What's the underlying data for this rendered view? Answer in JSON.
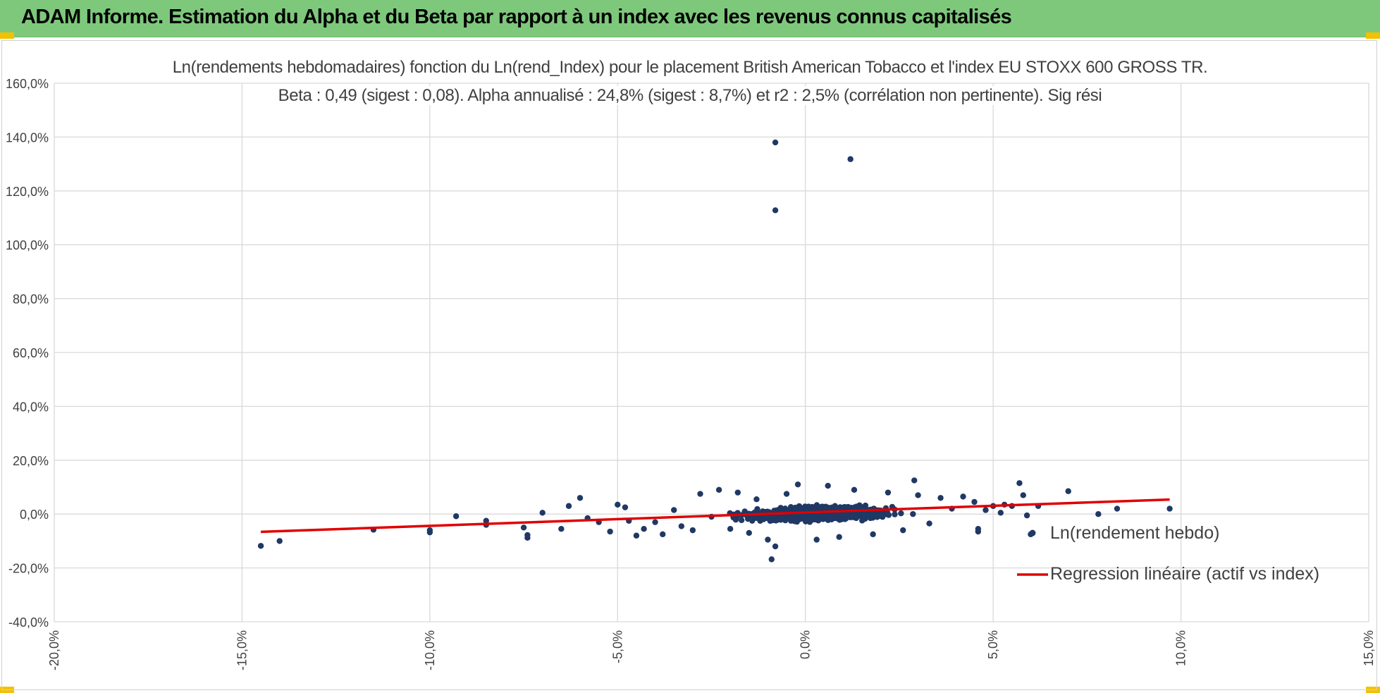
{
  "banner": {
    "title": "ADAM Informe. Estimation du Alpha et du Beta par rapport à un index avec les revenus connus capitalisés",
    "background": "#7ec87c",
    "corner_color": "#f2c100"
  },
  "chart_data": {
    "type": "scatter",
    "title_line1": "Ln(rendements hebdomadaires) fonction du Ln(rend_Index) pour le placement British American Tobacco  et l'index EU STOXX 600 GROSS TR.",
    "title_line2": "Beta : 0,49 (sigest : 0,08).  Alpha annualisé : 24,8% (sigest : 8,7%) et r2 : 2,5% (corrélation non pertinente). Sig rési",
    "xlabel": "",
    "ylabel": "",
    "xlim": [
      -20,
      15
    ],
    "ylim": [
      -40,
      160
    ],
    "x_ticks": [
      -20,
      -15,
      -10,
      -5,
      0,
      5,
      10,
      15
    ],
    "y_ticks": [
      -40,
      -20,
      0,
      20,
      40,
      60,
      80,
      100,
      120,
      140,
      160
    ],
    "x_tick_labels": [
      "-20,0%",
      "-15,0%",
      "-10,0%",
      "-5,0%",
      "0,0%",
      "5,0%",
      "10,0%",
      "15,0%"
    ],
    "y_tick_labels": [
      "-40,0%",
      "-20,0%",
      "0,0%",
      "20,0%",
      "40,0%",
      "60,0%",
      "80,0%",
      "100,0%",
      "120,0%",
      "140,0%",
      "160,0%"
    ],
    "grid": true,
    "legend_position": "right",
    "series": [
      {
        "name": "Ln(rendement hebdo)",
        "kind": "scatter",
        "color": "#203864",
        "points": [
          [
            -0.8,
            138.0
          ],
          [
            1.2,
            131.8
          ],
          [
            -0.8,
            112.8
          ],
          [
            -0.9,
            -16.8
          ],
          [
            -14.5,
            -11.8
          ],
          [
            -14.0,
            -10.0
          ],
          [
            -11.5,
            -5.8
          ],
          [
            -10.0,
            -6.8
          ],
          [
            -10.0,
            -6.0
          ],
          [
            -9.3,
            -0.8
          ],
          [
            -8.5,
            -4.0
          ],
          [
            -8.5,
            -2.5
          ],
          [
            -7.5,
            -5.0
          ],
          [
            -7.4,
            -8.8
          ],
          [
            -7.4,
            -7.8
          ],
          [
            -7.0,
            0.5
          ],
          [
            -6.5,
            -5.5
          ],
          [
            -6.3,
            3.0
          ],
          [
            -6.0,
            6.0
          ],
          [
            -5.8,
            -1.5
          ],
          [
            -5.5,
            -3.0
          ],
          [
            -5.2,
            -6.5
          ],
          [
            -5.0,
            3.5
          ],
          [
            -4.8,
            2.5
          ],
          [
            -4.7,
            -2.5
          ],
          [
            -4.5,
            -8.0
          ],
          [
            -4.3,
            -5.5
          ],
          [
            -4.0,
            -3.0
          ],
          [
            -3.8,
            -7.5
          ],
          [
            -3.5,
            1.5
          ],
          [
            -3.3,
            -4.5
          ],
          [
            -3.0,
            -6.0
          ],
          [
            -2.8,
            7.5
          ],
          [
            -2.5,
            -1.0
          ],
          [
            -2.3,
            9.0
          ],
          [
            -2.0,
            -5.5
          ],
          [
            -1.8,
            8.0
          ],
          [
            -1.5,
            -7.0
          ],
          [
            -1.3,
            5.5
          ],
          [
            -1.0,
            -9.5
          ],
          [
            -0.8,
            -12.0
          ],
          [
            -0.5,
            7.5
          ],
          [
            -0.2,
            11.0
          ],
          [
            0.3,
            -9.5
          ],
          [
            0.6,
            10.5
          ],
          [
            0.9,
            -8.5
          ],
          [
            1.3,
            9.0
          ],
          [
            1.8,
            -7.5
          ],
          [
            2.2,
            8.0
          ],
          [
            2.6,
            -6.0
          ],
          [
            2.9,
            12.5
          ],
          [
            3.0,
            7.0
          ],
          [
            3.3,
            -3.5
          ],
          [
            3.6,
            6.0
          ],
          [
            3.9,
            2.0
          ],
          [
            4.2,
            6.5
          ],
          [
            4.5,
            4.5
          ],
          [
            4.6,
            -5.5
          ],
          [
            4.6,
            -6.5
          ],
          [
            4.8,
            1.5
          ],
          [
            5.0,
            3.0
          ],
          [
            5.2,
            0.5
          ],
          [
            5.3,
            3.5
          ],
          [
            5.5,
            3.0
          ],
          [
            5.7,
            11.5
          ],
          [
            5.8,
            7.0
          ],
          [
            5.9,
            -0.5
          ],
          [
            6.0,
            -7.5
          ],
          [
            6.2,
            3.0
          ],
          [
            7.0,
            8.5
          ],
          [
            7.8,
            0.0
          ],
          [
            8.3,
            2.0
          ],
          [
            9.7,
            2.0
          ]
        ]
      },
      {
        "name": "Regression linéaire (actif vs index)",
        "kind": "line",
        "color": "#e00000",
        "points": [
          [
            -14.5,
            -6.6
          ],
          [
            9.7,
            5.4
          ]
        ]
      }
    ]
  }
}
